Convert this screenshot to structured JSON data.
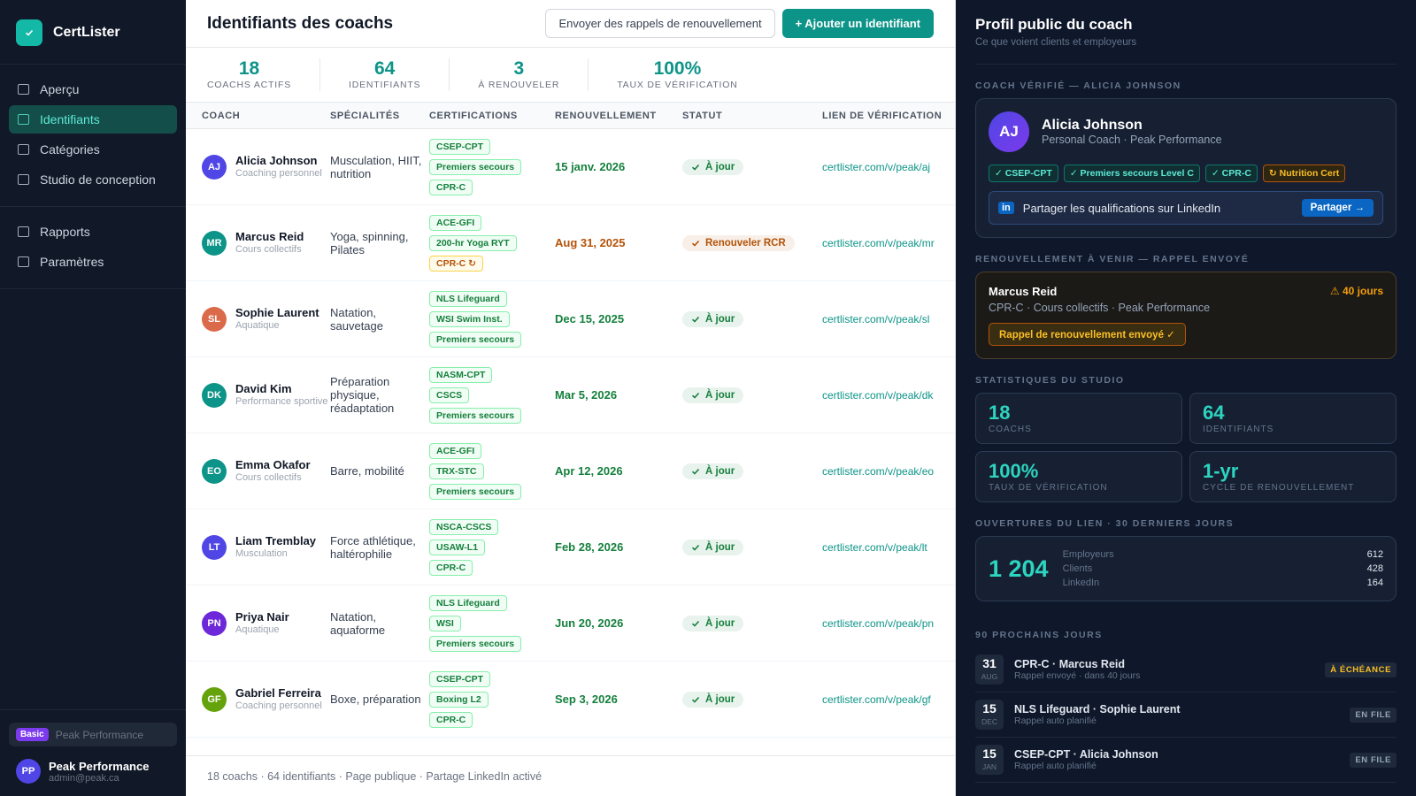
{
  "sidebar": {
    "brand": "CertLister",
    "nav": [
      [
        "Aperçu",
        "Identifiants",
        "Catégories",
        "Studio de conception"
      ],
      [
        "Rapports",
        "Paramètres"
      ]
    ],
    "active": [
      0,
      1
    ],
    "plan_badge": "Basic",
    "plan_name": "Peak Performance",
    "user": {
      "initials": "PP",
      "name": "Peak Performance",
      "email": "admin@peak.ca"
    }
  },
  "main": {
    "title": "Identifiants des coachs",
    "buttons": [
      "Envoyer des rappels de renouvellement",
      "+ Ajouter un identifiant"
    ],
    "stats": [
      {
        "value": "18",
        "label": "COACHS ACTIFS"
      },
      {
        "value": "64",
        "label": "IDENTIFIANTS"
      },
      {
        "value": "3",
        "label": "À RENOUVELER"
      },
      {
        "value": "100%",
        "label": "TAUX DE VÉRIFICATION"
      }
    ],
    "table": {
      "headers": [
        "COACH",
        "SPÉCIALITÉS",
        "CERTIFICATIONS",
        "RENOUVELLEMENT",
        "STATUT",
        "LIEN DE VÉRIFICATION"
      ],
      "rows": [
        {
          "initials": "AJ",
          "avatar": "#4f46e5",
          "name": "Alicia Johnson",
          "role": "Coaching personnel",
          "specialties": "Musculation, HIIT, nutrition",
          "certs": [
            "CSEP-CPT",
            "Premiers secours",
            "CPR-C"
          ],
          "renewal": "15 janv. 2026",
          "status": "À jour",
          "color": "#15803d",
          "link": "certlister.com/v/peak/aj"
        },
        {
          "initials": "MR",
          "avatar": "#0d9488",
          "name": "Marcus Reid",
          "role": "Cours collectifs",
          "specialties": "Yoga, spinning, Pilates",
          "certs": [
            "ACE-GFI",
            "200-hr Yoga RYT",
            {
              "name": "CPR-C ↻",
              "color": "#b45309"
            }
          ],
          "renewal": "Aug 31, 2025",
          "status": "Renouveler RCR",
          "color": "#b45309",
          "link": "certlister.com/v/peak/mr"
        },
        {
          "initials": "SL",
          "avatar": "#db6a4a",
          "name": "Sophie Laurent",
          "role": "Aquatique",
          "specialties": "Natation, sauvetage",
          "certs": [
            "NLS Lifeguard",
            "WSI Swim Inst.",
            "Premiers secours"
          ],
          "renewal": "Dec 15, 2025",
          "status": "À jour",
          "color": "#15803d",
          "link": "certlister.com/v/peak/sl"
        },
        {
          "initials": "DK",
          "avatar": "#0d9488",
          "name": "David Kim",
          "role": "Performance sportive",
          "specialties": "Préparation physique, réadaptation",
          "certs": [
            "NASM-CPT",
            "CSCS",
            "Premiers secours"
          ],
          "renewal": "Mar 5, 2026",
          "status": "À jour",
          "color": "#15803d",
          "link": "certlister.com/v/peak/dk"
        },
        {
          "initials": "EO",
          "avatar": "#0d9488",
          "name": "Emma Okafor",
          "role": "Cours collectifs",
          "specialties": "Barre, mobilité",
          "certs": [
            "ACE-GFI",
            "TRX-STC",
            "Premiers secours"
          ],
          "renewal": "Apr 12, 2026",
          "status": "À jour",
          "color": "#15803d",
          "link": "certlister.com/v/peak/eo"
        },
        {
          "initials": "LT",
          "avatar": "#4f46e5",
          "name": "Liam Tremblay",
          "role": "Musculation",
          "specialties": "Force athlétique, haltérophilie",
          "certs": [
            "NSCA-CSCS",
            "USAW-L1",
            "CPR-C"
          ],
          "renewal": "Feb 28, 2026",
          "status": "À jour",
          "color": "#15803d",
          "link": "certlister.com/v/peak/lt"
        },
        {
          "initials": "PN",
          "avatar": "#6d28d9",
          "name": "Priya Nair",
          "role": "Aquatique",
          "specialties": "Natation, aquaforme",
          "certs": [
            "NLS Lifeguard",
            "WSI",
            "Premiers secours"
          ],
          "renewal": "Jun 20, 2026",
          "status": "À jour",
          "color": "#15803d",
          "link": "certlister.com/v/peak/pn"
        },
        {
          "initials": "GF",
          "avatar": "#65a30d",
          "name": "Gabriel Ferreira",
          "role": "Coaching personnel",
          "specialties": "Boxe, préparation",
          "certs": [
            "CSEP-CPT",
            "Boxing L2",
            "CPR-C"
          ],
          "renewal": "Sep 3, 2026",
          "status": "À jour",
          "color": "#15803d",
          "link": "certlister.com/v/peak/gf"
        }
      ]
    },
    "footer": "18 coachs · 64 identifiants · Page publique · Partage LinkedIn activé"
  },
  "panel": {
    "title": "Profil public du coach",
    "subtitle": "Ce que voient clients et employeurs",
    "profile_label": "COACH VÉRIFIÉ — ALICIA JOHNSON",
    "profile": {
      "initials": "AJ",
      "name": "Alicia Johnson",
      "role": "Personal Coach · Peak Performance",
      "badges": [
        "✓ CSEP-CPT",
        "✓ Premiers secours Level C",
        "✓ CPR-C",
        {
          "name": "↻ Nutrition Cert",
          "color": "#fbbf24"
        }
      ],
      "linkedin_icon": "in",
      "linkedin": "Partager les qualifications sur LinkedIn",
      "share": "Partager →"
    },
    "renewal_label": "RENOUVELLEMENT À VENIR — RAPPEL ENVOYÉ",
    "renewal": {
      "name": "Marcus Reid",
      "days": "⚠ 40 jours",
      "detail": "CPR-C · Cours collectifs · Peak Performance",
      "action": "Rappel de renouvellement envoyé ✓"
    },
    "stats_label": "STATISTIQUES DU STUDIO",
    "stats": [
      {
        "value": "18",
        "label": "COACHS"
      },
      {
        "value": "64",
        "label": "IDENTIFIANTS"
      },
      {
        "value": "100%",
        "label": "TAUX DE VÉRIFICATION"
      },
      {
        "value": "1-yr",
        "label": "CYCLE DE RENOUVELLEMENT"
      }
    ],
    "opens_label": "OUVERTURES DU LIEN · 30 DERNIERS JOURS",
    "opens": {
      "total": "1 204",
      "breakdown": [
        [
          "Employeurs",
          "612"
        ],
        [
          "Clients",
          "428"
        ],
        [
          "LinkedIn",
          "164"
        ]
      ]
    },
    "upcoming_label": "90 PROCHAINS JOURS",
    "upcoming": [
      {
        "day": "31",
        "month": "AUG",
        "title": "CPR-C · Marcus Reid",
        "sub": "Rappel envoyé · dans 40 jours",
        "tag": "À ÉCHÉANCE",
        "color": "#fbbf24"
      },
      {
        "day": "15",
        "month": "DEC",
        "title": "NLS Lifeguard · Sophie Laurent",
        "sub": "Rappel auto planifié",
        "tag": "EN FILE",
        "color": "#94a3b8"
      },
      {
        "day": "15",
        "month": "JAN",
        "title": "CSEP-CPT · Alicia Johnson",
        "sub": "Rappel auto planifié",
        "tag": "EN FILE",
        "color": "#94a3b8"
      }
    ]
  }
}
